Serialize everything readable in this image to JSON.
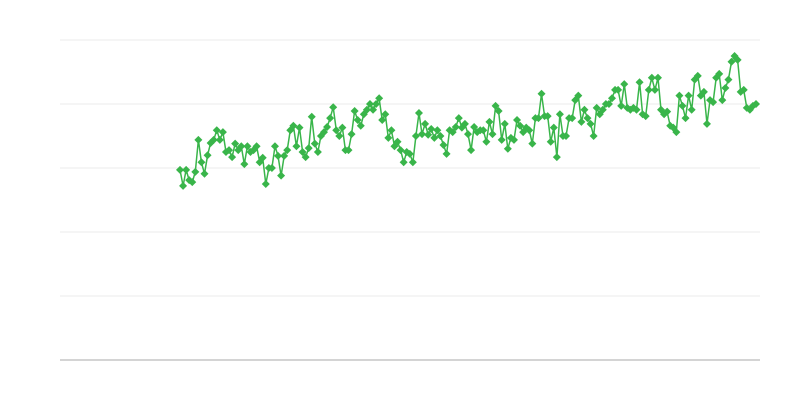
{
  "chart_data": {
    "type": "line",
    "title": "",
    "xlabel": "",
    "ylabel": "",
    "ylim": [
      0,
      5
    ],
    "grid": true,
    "marker": "diamond",
    "colors": {
      "series": "#39b54a",
      "grid": "#ebebeb",
      "axis": "#aaaaaa"
    },
    "series": [
      {
        "values": [
          2.97,
          2.72,
          2.97,
          2.81,
          2.78,
          2.94,
          3.44,
          3.09,
          2.91,
          3.2,
          3.39,
          3.44,
          3.59,
          3.44,
          3.56,
          3.25,
          3.28,
          3.17,
          3.38,
          3.28,
          3.34,
          3.06,
          3.34,
          3.25,
          3.28,
          3.34,
          3.09,
          3.16,
          2.75,
          3.0,
          3.0,
          3.34,
          3.19,
          2.88,
          3.19,
          3.28,
          3.59,
          3.66,
          3.34,
          3.63,
          3.25,
          3.17,
          3.31,
          3.8,
          3.38,
          3.25,
          3.5,
          3.56,
          3.64,
          3.78,
          3.95,
          3.59,
          3.5,
          3.63,
          3.28,
          3.28,
          3.53,
          3.89,
          3.75,
          3.66,
          3.84,
          3.91,
          4.0,
          3.91,
          4.0,
          4.09,
          3.75,
          3.84,
          3.47,
          3.59,
          3.34,
          3.41,
          3.28,
          3.09,
          3.25,
          3.22,
          3.09,
          3.5,
          3.86,
          3.53,
          3.69,
          3.52,
          3.61,
          3.47,
          3.59,
          3.5,
          3.36,
          3.22,
          3.59,
          3.56,
          3.64,
          3.78,
          3.63,
          3.69,
          3.53,
          3.28,
          3.64,
          3.56,
          3.59,
          3.59,
          3.41,
          3.72,
          3.53,
          3.97,
          3.89,
          3.44,
          3.69,
          3.3,
          3.47,
          3.44,
          3.75,
          3.66,
          3.56,
          3.63,
          3.59,
          3.38,
          3.78,
          3.78,
          4.16,
          3.81,
          3.81,
          3.41,
          3.63,
          3.17,
          3.84,
          3.5,
          3.5,
          3.78,
          3.78,
          4.06,
          4.13,
          3.72,
          3.91,
          3.78,
          3.69,
          3.5,
          3.94,
          3.84,
          3.91,
          4.0,
          4.0,
          4.09,
          4.22,
          4.22,
          3.97,
          4.31,
          3.94,
          3.91,
          3.94,
          3.91,
          4.34,
          3.84,
          3.81,
          4.22,
          4.41,
          4.22,
          4.41,
          3.91,
          3.84,
          3.88,
          3.66,
          3.63,
          3.56,
          4.13,
          3.97,
          3.78,
          4.13,
          3.91,
          4.38,
          4.44,
          4.13,
          4.19,
          3.69,
          4.06,
          4.03,
          4.41,
          4.47,
          4.06,
          4.25,
          4.38,
          4.66,
          4.75,
          4.69,
          4.19,
          4.22,
          3.94,
          3.91,
          3.97,
          4.0
        ]
      }
    ]
  }
}
